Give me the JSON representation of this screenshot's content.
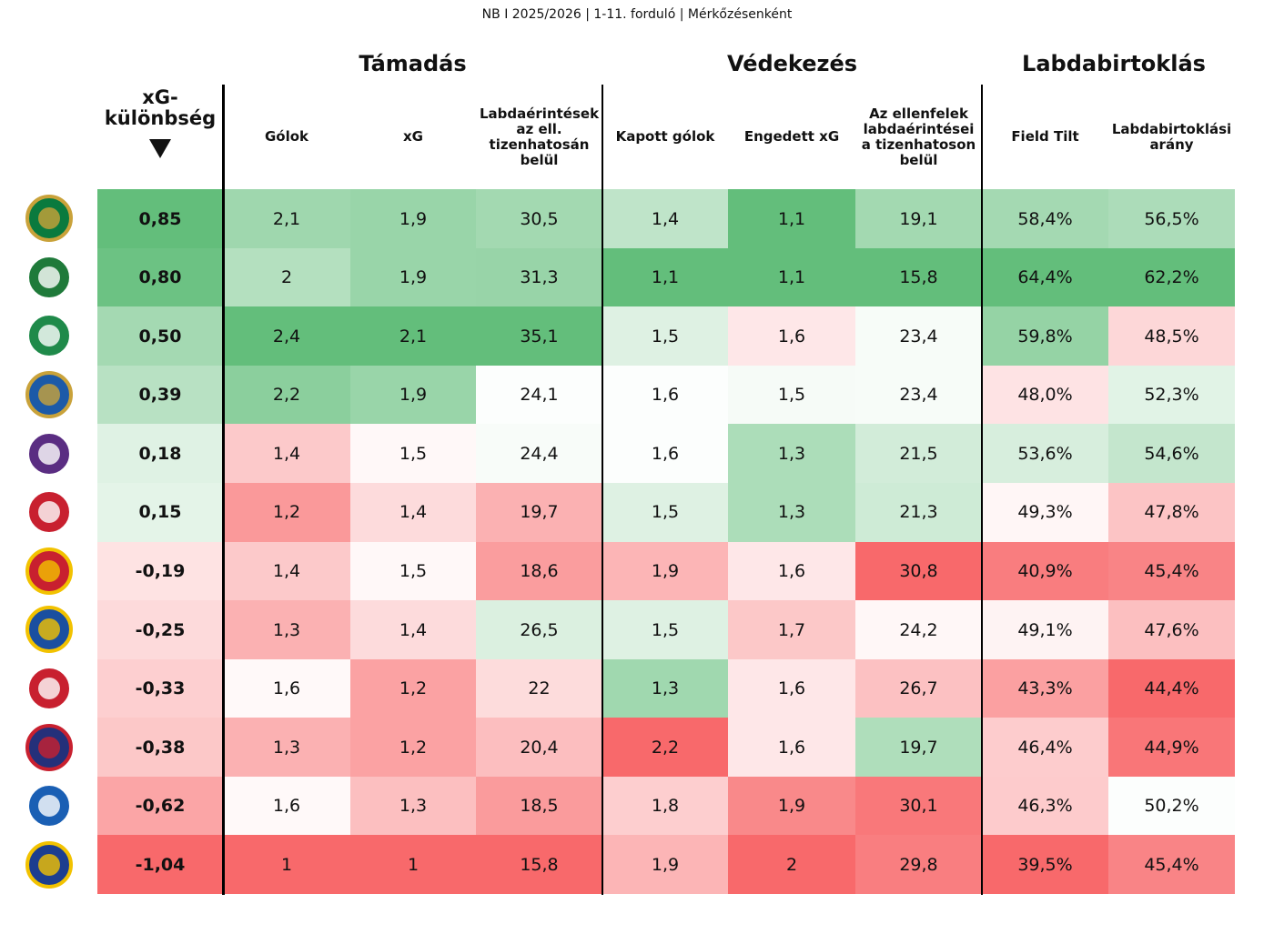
{
  "header": {
    "subtitle": "NB I 2025/2026 | 1-11. forduló | Mérkőzésenként",
    "groups": [
      "Támadás",
      "Védekezés",
      "Labdabirtoklás"
    ]
  },
  "table": {
    "columns": [
      "xG-különbség",
      "Gólok",
      "xG",
      "Labdaérintések az ell. tizenhatosán belül",
      "Kapott gólok",
      "Engedett xG",
      "Az ellenfelek labdaérintései a tizenhatoson belül",
      "Field Tilt",
      "Labdabirtoklási arány"
    ],
    "rows": [
      [
        "0,85",
        "2,1",
        "1,9",
        "30,5",
        "1,4",
        "1,1",
        "19,1",
        "58,4%",
        "56,5%"
      ],
      [
        "0,80",
        "2",
        "1,9",
        "31,3",
        "1,1",
        "1,1",
        "15,8",
        "64,4%",
        "62,2%"
      ],
      [
        "0,50",
        "2,4",
        "2,1",
        "35,1",
        "1,5",
        "1,6",
        "23,4",
        "59,8%",
        "48,5%"
      ],
      [
        "0,39",
        "2,2",
        "1,9",
        "24,1",
        "1,6",
        "1,5",
        "23,4",
        "48,0%",
        "52,3%"
      ],
      [
        "0,18",
        "1,4",
        "1,5",
        "24,4",
        "1,6",
        "1,3",
        "21,5",
        "53,6%",
        "54,6%"
      ],
      [
        "0,15",
        "1,2",
        "1,4",
        "19,7",
        "1,5",
        "1,3",
        "21,3",
        "49,3%",
        "47,8%"
      ],
      [
        "-0,19",
        "1,4",
        "1,5",
        "18,6",
        "1,9",
        "1,6",
        "30,8",
        "40,9%",
        "45,4%"
      ],
      [
        "-0,25",
        "1,3",
        "1,4",
        "26,5",
        "1,5",
        "1,7",
        "24,2",
        "49,1%",
        "47,6%"
      ],
      [
        "-0,33",
        "1,6",
        "1,2",
        "22",
        "1,3",
        "1,6",
        "26,7",
        "43,3%",
        "44,4%"
      ],
      [
        "-0,38",
        "1,3",
        "1,2",
        "20,4",
        "2,2",
        "1,6",
        "19,7",
        "46,4%",
        "44,9%"
      ],
      [
        "-0,62",
        "1,6",
        "1,3",
        "18,5",
        "1,8",
        "1,9",
        "30,1",
        "46,3%",
        "50,2%"
      ],
      [
        "-1,04",
        "1",
        "1",
        "15,8",
        "1,9",
        "2",
        "29,8",
        "39,5%",
        "45,4%"
      ]
    ]
  }
}
